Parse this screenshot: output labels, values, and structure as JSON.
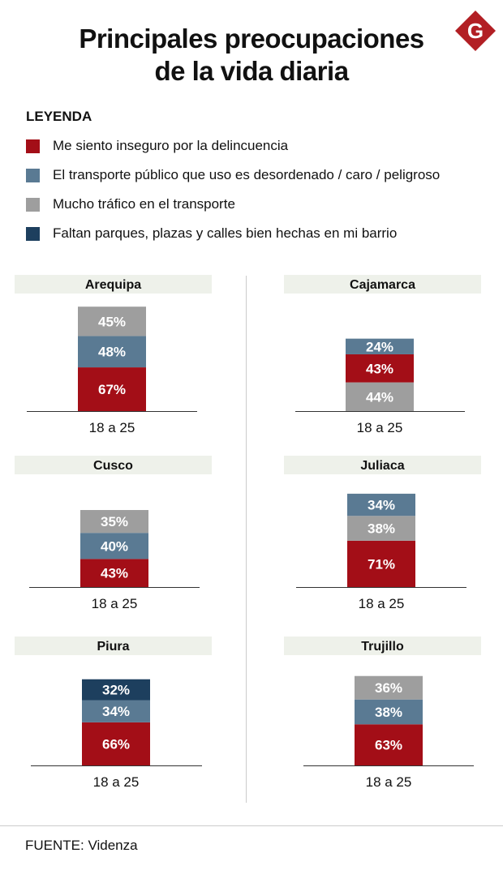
{
  "title": {
    "line1": "Principales preocupaciones",
    "line2": "de la vida diaria"
  },
  "logo": {
    "letter": "G",
    "color": "#b21f24",
    "icon": "g-logo-icon"
  },
  "legend": {
    "title": "LEYENDA",
    "items": [
      {
        "label": "Me siento inseguro por la delincuencia",
        "color": "#a30e17"
      },
      {
        "label": "El transporte público que uso es desordenado / caro / peligroso",
        "color": "#5a7a93"
      },
      {
        "label": "Mucho tráfico en el transporte",
        "color": "#9e9e9e"
      },
      {
        "label": "Faltan parques, plazas y calles bien hechas en mi barrio",
        "color": "#1d3f5e"
      }
    ]
  },
  "chart_data": [
    {
      "type": "bar",
      "stacked": true,
      "title": "Arequipa",
      "categories": [
        "18 a 25"
      ],
      "series": [
        {
          "name": "Me siento inseguro por la delincuencia",
          "color": "#a30e17",
          "label": "67%",
          "value": 67
        },
        {
          "name": "El transporte público que uso es desordenado / caro / peligroso",
          "color": "#5a7a93",
          "label": "48%",
          "value": 48
        },
        {
          "name": "Mucho tráfico en el transporte",
          "color": "#9e9e9e",
          "label": "45%",
          "value": 45
        }
      ]
    },
    {
      "type": "bar",
      "stacked": true,
      "title": "Cajamarca",
      "categories": [
        "18 a 25"
      ],
      "series": [
        {
          "name": "Mucho tráfico en el transporte",
          "color": "#9e9e9e",
          "label": "44%",
          "value": 44
        },
        {
          "name": "Me siento inseguro por la delincuencia",
          "color": "#a30e17",
          "label": "43%",
          "value": 43
        },
        {
          "name": "El transporte público que uso es desordenado / caro / peligroso",
          "color": "#5a7a93",
          "label": "24%",
          "value": 24
        }
      ]
    },
    {
      "type": "bar",
      "stacked": true,
      "title": "Cusco",
      "categories": [
        "18 a 25"
      ],
      "series": [
        {
          "name": "Me siento inseguro por la delincuencia",
          "color": "#a30e17",
          "label": "43%",
          "value": 43
        },
        {
          "name": "El transporte público que uso es desordenado / caro / peligroso",
          "color": "#5a7a93",
          "label": "40%",
          "value": 40
        },
        {
          "name": "Mucho tráfico en el transporte",
          "color": "#9e9e9e",
          "label": "35%",
          "value": 35
        }
      ]
    },
    {
      "type": "bar",
      "stacked": true,
      "title": "Juliaca",
      "categories": [
        "18 a 25"
      ],
      "series": [
        {
          "name": "Me siento inseguro por la delincuencia",
          "color": "#a30e17",
          "label": "71%",
          "value": 71
        },
        {
          "name": "Mucho tráfico en el transporte",
          "color": "#9e9e9e",
          "label": "38%",
          "value": 38
        },
        {
          "name": "El transporte público que uso es desordenado / caro / peligroso",
          "color": "#5a7a93",
          "label": "34%",
          "value": 34
        }
      ]
    },
    {
      "type": "bar",
      "stacked": true,
      "title": "Piura",
      "categories": [
        "18 a 25"
      ],
      "series": [
        {
          "name": "Me siento inseguro por la delincuencia",
          "color": "#a30e17",
          "label": "66%",
          "value": 66
        },
        {
          "name": "El transporte público que uso es desordenado / caro / peligroso",
          "color": "#5a7a93",
          "label": "34%",
          "value": 34
        },
        {
          "name": "Faltan parques, plazas y calles bien hechas en mi barrio",
          "color": "#1d3f5e",
          "label": "32%",
          "value": 32
        }
      ]
    },
    {
      "type": "bar",
      "stacked": true,
      "title": "Trujillo",
      "categories": [
        "18 a 25"
      ],
      "series": [
        {
          "name": "Me siento inseguro por la delincuencia",
          "color": "#a30e17",
          "label": "63%",
          "value": 63
        },
        {
          "name": "El transporte público que uso es desordenado / caro / peligroso",
          "color": "#5a7a93",
          "label": "38%",
          "value": 38
        },
        {
          "name": "Mucho tráfico en el transporte",
          "color": "#9e9e9e",
          "label": "36%",
          "value": 36
        }
      ]
    }
  ],
  "source": "FUENTE: Videnza"
}
